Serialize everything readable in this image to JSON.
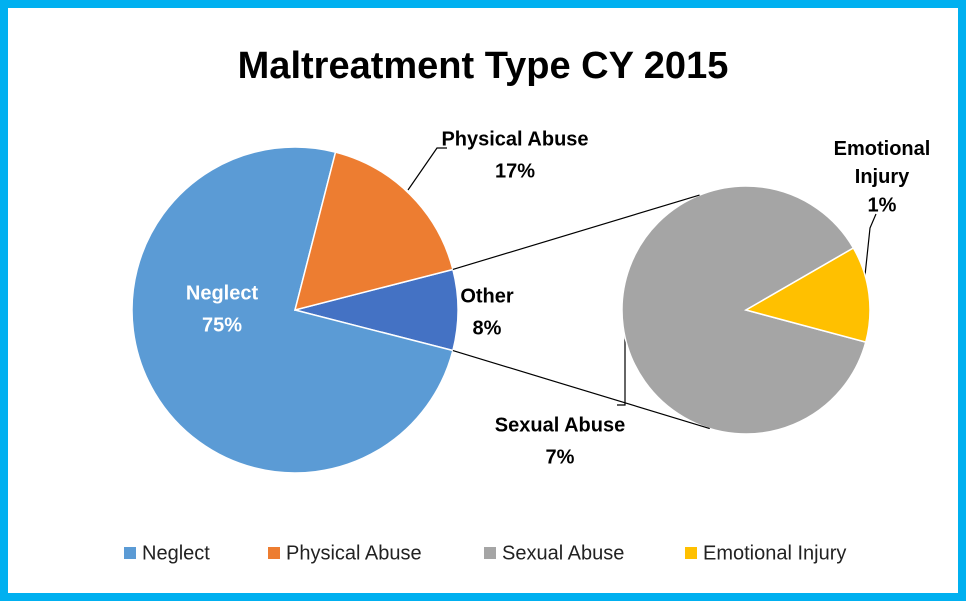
{
  "chart_data": {
    "type": "pie_of_pie",
    "title": "Maltreatment Type CY 2015",
    "categories": [
      "Neglect",
      "Physical Abuse",
      "Sexual Abuse",
      "Emotional Injury"
    ],
    "values": [
      75,
      17,
      7,
      1
    ],
    "value_labels": [
      "75%",
      "17%",
      "7%",
      "1%"
    ],
    "colors": [
      "#5b9bd5",
      "#ed7d31",
      "#a5a5a5",
      "#ffc000"
    ],
    "secondary_count": 2,
    "other": {
      "name": "Other",
      "value": 8,
      "value_label": "8%",
      "color": "#4472c4"
    },
    "legend": "bottom"
  }
}
